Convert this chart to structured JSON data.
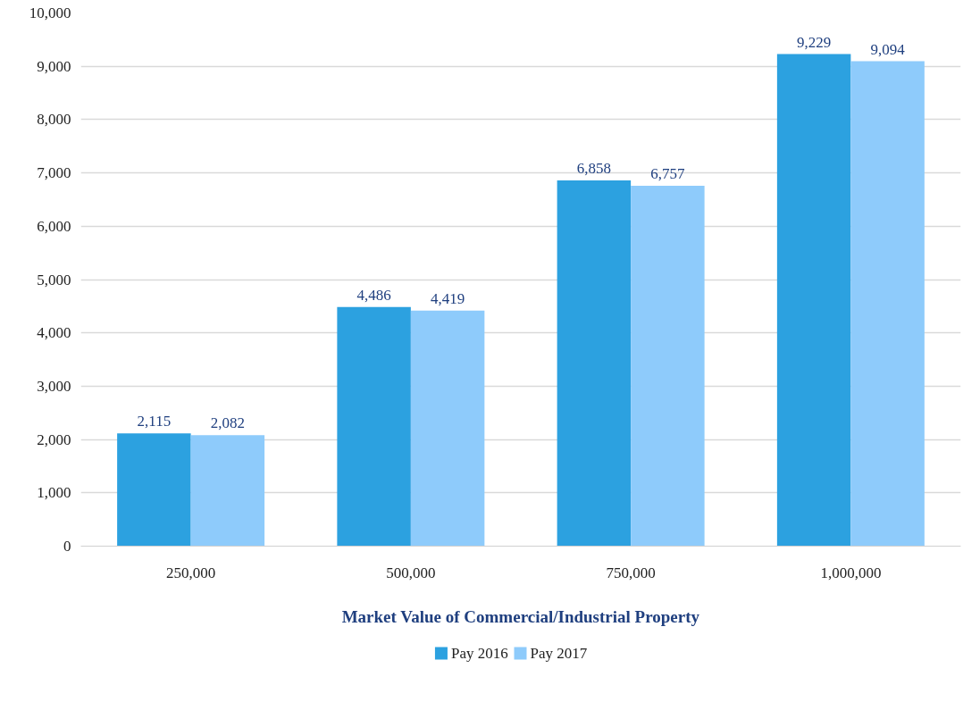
{
  "chart_data": {
    "type": "bar",
    "xlabel": "Market Value of Commercial/Industrial Property",
    "categories": [
      "250,000",
      "500,000",
      "750,000",
      "1,000,000"
    ],
    "series": [
      {
        "name": "Pay 2016",
        "color": "#2ca1e0",
        "values": [
          2115,
          4486,
          6858,
          9229
        ],
        "value_labels": [
          "2,115",
          "4,486",
          "6,858",
          "9,229"
        ]
      },
      {
        "name": "Pay 2017",
        "color": "#8ecbfb",
        "values": [
          2082,
          4419,
          6757,
          9094
        ],
        "value_labels": [
          "2,082",
          "4,419",
          "6,757",
          "9,094"
        ]
      }
    ],
    "ylim": [
      0,
      10000
    ],
    "yticks": [
      {
        "value": 0,
        "label": "0"
      },
      {
        "value": 1000,
        "label": "1,000"
      },
      {
        "value": 2000,
        "label": "2,000"
      },
      {
        "value": 3000,
        "label": "3,000"
      },
      {
        "value": 4000,
        "label": "4,000"
      },
      {
        "value": 5000,
        "label": "5,000"
      },
      {
        "value": 6000,
        "label": "6,000"
      },
      {
        "value": 7000,
        "label": "7,000"
      },
      {
        "value": 8000,
        "label": "8,000"
      },
      {
        "value": 9000,
        "label": "9,000"
      },
      {
        "value": 10000,
        "label": "10,000"
      }
    ],
    "grid": "y",
    "legend": "bottom"
  }
}
